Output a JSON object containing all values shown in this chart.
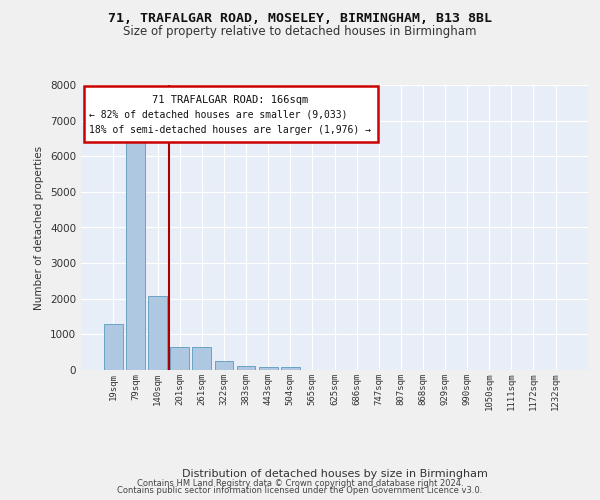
{
  "title1": "71, TRAFALGAR ROAD, MOSELEY, BIRMINGHAM, B13 8BL",
  "title2": "Size of property relative to detached houses in Birmingham",
  "xlabel": "Distribution of detached houses by size in Birmingham",
  "ylabel": "Number of detached properties",
  "footer1": "Contains HM Land Registry data © Crown copyright and database right 2024.",
  "footer2": "Contains public sector information licensed under the Open Government Licence v3.0.",
  "annotation_line1": "71 TRAFALGAR ROAD: 166sqm",
  "annotation_line2": "← 82% of detached houses are smaller (9,033)",
  "annotation_line3": "18% of semi-detached houses are larger (1,976) →",
  "bar_categories": [
    "19sqm",
    "79sqm",
    "140sqm",
    "201sqm",
    "261sqm",
    "322sqm",
    "383sqm",
    "443sqm",
    "504sqm",
    "565sqm",
    "625sqm",
    "686sqm",
    "747sqm",
    "807sqm",
    "868sqm",
    "929sqm",
    "990sqm",
    "1050sqm",
    "1111sqm",
    "1172sqm",
    "1232sqm"
  ],
  "bar_values": [
    1300,
    6560,
    2080,
    650,
    650,
    240,
    120,
    95,
    80,
    0,
    0,
    0,
    0,
    0,
    0,
    0,
    0,
    0,
    0,
    0,
    0
  ],
  "bar_color": "#adc8e0",
  "bar_edge_color": "#5a9abf",
  "vline_color": "#aa0000",
  "background_color": "#e8eef7",
  "fig_background": "#f0f0f0",
  "grid_color": "#ffffff",
  "ylim": [
    0,
    8000
  ],
  "yticks": [
    0,
    1000,
    2000,
    3000,
    4000,
    5000,
    6000,
    7000,
    8000
  ]
}
